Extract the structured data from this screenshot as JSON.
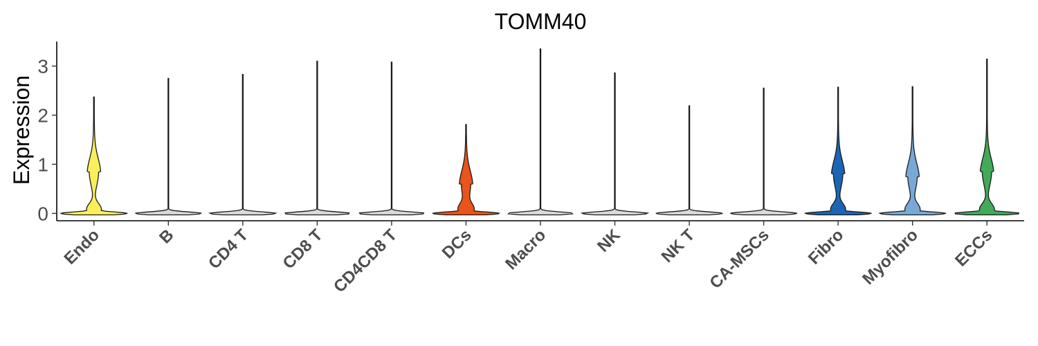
{
  "chart_data": {
    "type": "violin",
    "title": "TOMM40",
    "xlabel": "",
    "ylabel": "Expression",
    "ylim": [
      -0.15,
      3.5
    ],
    "yticks": [
      0,
      1,
      2,
      3
    ],
    "grid": false,
    "legend": "none",
    "categories": [
      "Endo",
      "B",
      "CD4 T",
      "CD8 T",
      "CD4CD8 T",
      "DCs",
      "Macro",
      "NK",
      "NK T",
      "CA-MSCs",
      "Fibro",
      "Myofibro",
      "ECCs"
    ],
    "series": [
      {
        "category": "Endo",
        "color": "#F9EF5A",
        "max": 2.37,
        "mode": 0.0,
        "secondary_mode": 0.85
      },
      {
        "category": "B",
        "color": "#D9D9D9",
        "max": 2.75,
        "mode": 0.0
      },
      {
        "category": "CD4 T",
        "color": "#D9D9D9",
        "max": 2.83,
        "mode": 0.0
      },
      {
        "category": "CD8 T",
        "color": "#D9D9D9",
        "max": 3.1,
        "mode": 0.0
      },
      {
        "category": "CD4CD8 T",
        "color": "#D9D9D9",
        "max": 3.08,
        "mode": 0.0
      },
      {
        "category": "DCs",
        "color": "#E8541B",
        "max": 1.81,
        "mode": 0.0,
        "secondary_mode": 0.6
      },
      {
        "category": "Macro",
        "color": "#D9D9D9",
        "max": 3.35,
        "mode": 0.0
      },
      {
        "category": "NK",
        "color": "#D9D9D9",
        "max": 2.86,
        "mode": 0.0
      },
      {
        "category": "NK T",
        "color": "#D9D9D9",
        "max": 2.19,
        "mode": 0.0
      },
      {
        "category": "CA-MSCs",
        "color": "#D9D9D9",
        "max": 2.55,
        "mode": 0.0
      },
      {
        "category": "Fibro",
        "color": "#1C65B4",
        "max": 2.57,
        "mode": 0.0,
        "secondary_mode": 0.8
      },
      {
        "category": "Myofibro",
        "color": "#79A8D6",
        "max": 2.58,
        "mode": 0.0,
        "secondary_mode": 0.75
      },
      {
        "category": "ECCs",
        "color": "#43A95B",
        "max": 3.14,
        "mode": 0.0,
        "secondary_mode": 0.85
      }
    ]
  }
}
